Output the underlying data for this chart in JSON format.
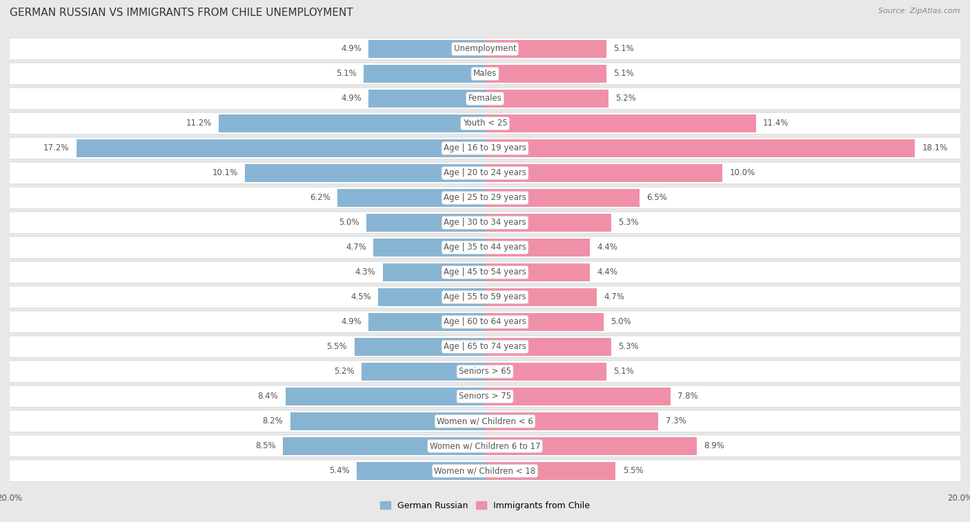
{
  "title": "GERMAN RUSSIAN VS IMMIGRANTS FROM CHILE UNEMPLOYMENT",
  "source": "Source: ZipAtlas.com",
  "categories": [
    "Unemployment",
    "Males",
    "Females",
    "Youth < 25",
    "Age | 16 to 19 years",
    "Age | 20 to 24 years",
    "Age | 25 to 29 years",
    "Age | 30 to 34 years",
    "Age | 35 to 44 years",
    "Age | 45 to 54 years",
    "Age | 55 to 59 years",
    "Age | 60 to 64 years",
    "Age | 65 to 74 years",
    "Seniors > 65",
    "Seniors > 75",
    "Women w/ Children < 6",
    "Women w/ Children 6 to 17",
    "Women w/ Children < 18"
  ],
  "left_values": [
    4.9,
    5.1,
    4.9,
    11.2,
    17.2,
    10.1,
    6.2,
    5.0,
    4.7,
    4.3,
    4.5,
    4.9,
    5.5,
    5.2,
    8.4,
    8.2,
    8.5,
    5.4
  ],
  "right_values": [
    5.1,
    5.1,
    5.2,
    11.4,
    18.1,
    10.0,
    6.5,
    5.3,
    4.4,
    4.4,
    4.7,
    5.0,
    5.3,
    5.1,
    7.8,
    7.3,
    8.9,
    5.5
  ],
  "left_color": "#88b4d4",
  "right_color": "#f090a8",
  "left_label": "German Russian",
  "right_label": "Immigrants from Chile",
  "axis_max": 20.0,
  "background_color": "#e8e8e8",
  "row_bg_color": "#ffffff",
  "title_fontsize": 11,
  "label_fontsize": 8.5,
  "value_fontsize": 8.5,
  "legend_fontsize": 9
}
